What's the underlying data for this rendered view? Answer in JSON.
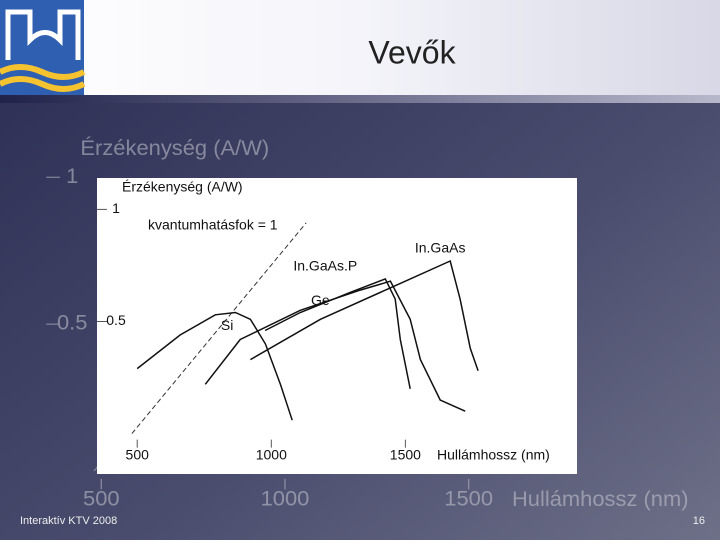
{
  "slide": {
    "title": "Vevők",
    "footer": "Interaktív KTV 2008",
    "page_number": "16"
  },
  "chart_data": {
    "type": "line",
    "y_label": "Érzékenység (A/W)",
    "x_label": "Hullámhossz (nm)",
    "annotation": "kvantumhatásfok = 1",
    "xlim": [
      350,
      2140
    ],
    "ylim": [
      -0.18,
      1.14
    ],
    "xticks": [
      500,
      1000,
      1500
    ],
    "yticks": [
      0.5,
      1
    ],
    "reference_line": {
      "x": [
        480,
        1130
      ],
      "values": [
        0,
        0.94
      ]
    },
    "series": [
      {
        "name": "Si",
        "color": "#111111",
        "x": [
          500,
          660,
          791,
          866,
          922,
          978,
          1034,
          1078
        ],
        "values": [
          0.29,
          0.44,
          0.53,
          0.54,
          0.51,
          0.4,
          0.22,
          0.06
        ]
      },
      {
        "name": "Ge",
        "color": "#111111",
        "x": [
          754,
          884,
          1108,
          1332,
          1444,
          1518,
          1556,
          1630,
          1723
        ],
        "values": [
          0.22,
          0.42,
          0.55,
          0.64,
          0.68,
          0.51,
          0.33,
          0.15,
          0.1
        ]
      },
      {
        "name": "In.GaAs.P",
        "color": "#111111",
        "x": [
          977,
          1108,
          1294,
          1425,
          1462,
          1481,
          1518
        ],
        "values": [
          0.46,
          0.54,
          0.63,
          0.69,
          0.6,
          0.42,
          0.2
        ]
      },
      {
        "name": "In.GaAs",
        "color": "#111111",
        "x": [
          922,
          1183,
          1481,
          1667,
          1704,
          1742,
          1771
        ],
        "values": [
          0.33,
          0.51,
          0.67,
          0.77,
          0.6,
          0.38,
          0.28
        ]
      }
    ]
  }
}
